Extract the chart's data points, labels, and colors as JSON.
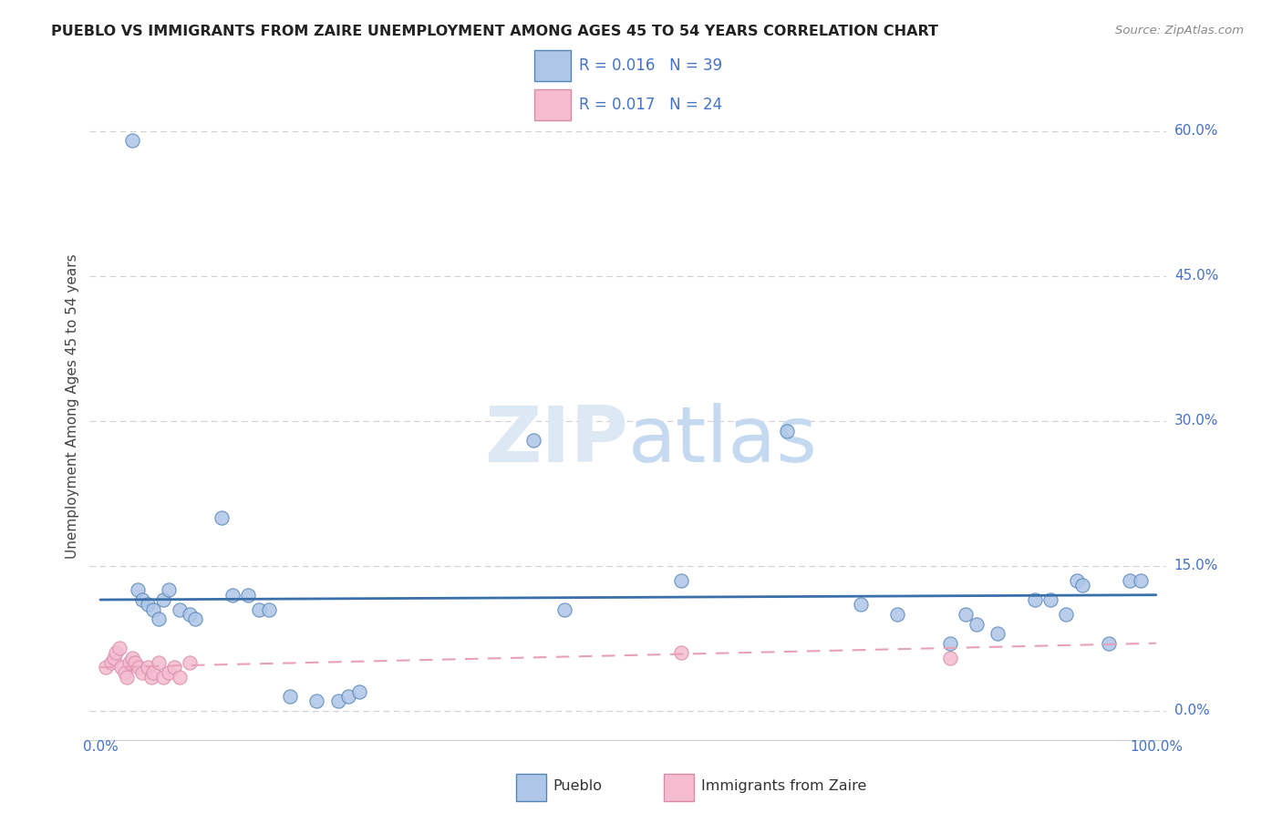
{
  "title": "PUEBLO VS IMMIGRANTS FROM ZAIRE UNEMPLOYMENT AMONG AGES 45 TO 54 YEARS CORRELATION CHART",
  "source": "Source: ZipAtlas.com",
  "ylabel": "Unemployment Among Ages 45 to 54 years",
  "yticks_labels": [
    "0.0%",
    "15.0%",
    "30.0%",
    "45.0%",
    "60.0%"
  ],
  "ytick_vals": [
    0,
    15,
    30,
    45,
    60
  ],
  "xlim": [
    -1,
    101
  ],
  "ylim": [
    -3,
    66
  ],
  "pueblo_color": "#aec6e8",
  "pueblo_edge_color": "#5585b5",
  "zaire_color": "#f5bcd0",
  "zaire_edge_color": "#d88aaa",
  "pueblo_line_color": "#3a6faa",
  "zaire_line_color": "#e8a0b8",
  "background_color": "#ffffff",
  "grid_color": "#d0d0d0",
  "watermark_color": "#dde8f5",
  "title_color": "#222222",
  "source_color": "#888888",
  "tick_label_color": "#4472c4",
  "ylabel_color": "#444444",
  "legend_r_color": "#4472c4",
  "pueblo_scatter": [
    [
      3.0,
      59.0
    ],
    [
      3.5,
      12.5
    ],
    [
      4.0,
      11.5
    ],
    [
      4.5,
      11.0
    ],
    [
      5.0,
      10.5
    ],
    [
      5.5,
      9.5
    ],
    [
      6.0,
      11.5
    ],
    [
      6.5,
      12.5
    ],
    [
      7.5,
      10.5
    ],
    [
      8.5,
      10.0
    ],
    [
      9.0,
      9.5
    ],
    [
      11.5,
      20.0
    ],
    [
      12.5,
      12.0
    ],
    [
      14.0,
      12.0
    ],
    [
      15.0,
      10.5
    ],
    [
      16.0,
      10.5
    ],
    [
      18.0,
      1.5
    ],
    [
      20.5,
      1.0
    ],
    [
      22.5,
      1.0
    ],
    [
      23.5,
      1.5
    ],
    [
      24.5,
      2.0
    ],
    [
      41.0,
      28.0
    ],
    [
      44.0,
      10.5
    ],
    [
      55.0,
      13.5
    ],
    [
      65.0,
      29.0
    ],
    [
      72.0,
      11.0
    ],
    [
      75.5,
      10.0
    ],
    [
      80.5,
      7.0
    ],
    [
      82.0,
      10.0
    ],
    [
      83.0,
      9.0
    ],
    [
      85.0,
      8.0
    ],
    [
      88.5,
      11.5
    ],
    [
      90.0,
      11.5
    ],
    [
      91.5,
      10.0
    ],
    [
      92.5,
      13.5
    ],
    [
      93.0,
      13.0
    ],
    [
      95.5,
      7.0
    ],
    [
      97.5,
      13.5
    ],
    [
      98.5,
      13.5
    ]
  ],
  "zaire_scatter": [
    [
      0.5,
      4.5
    ],
    [
      1.0,
      5.0
    ],
    [
      1.3,
      5.5
    ],
    [
      1.5,
      6.0
    ],
    [
      1.8,
      6.5
    ],
    [
      2.0,
      4.5
    ],
    [
      2.3,
      4.0
    ],
    [
      2.5,
      3.5
    ],
    [
      2.8,
      5.0
    ],
    [
      3.0,
      5.5
    ],
    [
      3.3,
      5.0
    ],
    [
      3.6,
      4.5
    ],
    [
      4.0,
      4.0
    ],
    [
      4.5,
      4.5
    ],
    [
      4.8,
      3.5
    ],
    [
      5.0,
      4.0
    ],
    [
      5.5,
      5.0
    ],
    [
      6.0,
      3.5
    ],
    [
      6.5,
      4.0
    ],
    [
      7.0,
      4.5
    ],
    [
      7.5,
      3.5
    ],
    [
      8.5,
      5.0
    ],
    [
      55.0,
      6.0
    ],
    [
      80.5,
      5.5
    ]
  ],
  "pueblo_trend": [
    0,
    100,
    11.5,
    12.0
  ],
  "zaire_trend": [
    0,
    100,
    4.5,
    7.0
  ]
}
